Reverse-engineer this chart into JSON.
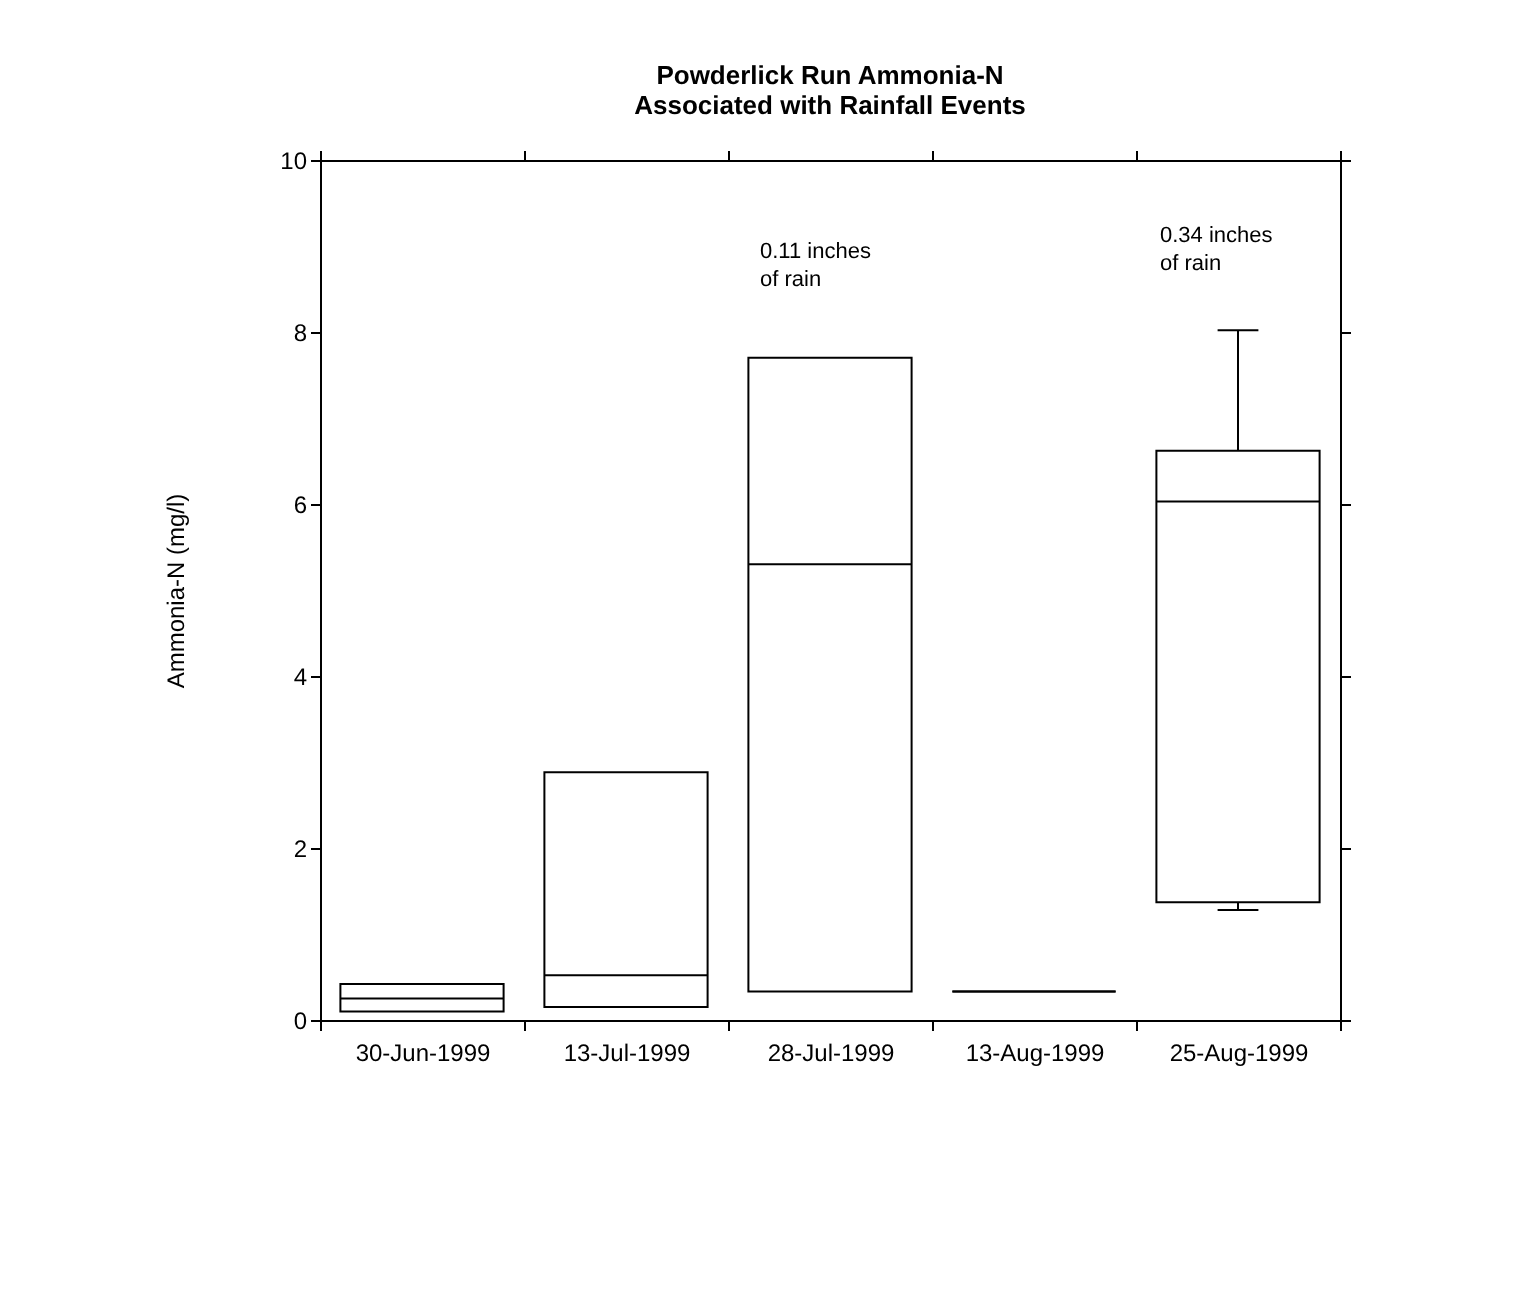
{
  "chart_data": {
    "type": "box",
    "title": [
      "Powderlick Run Ammonia-N",
      "Associated with Rainfall Events"
    ],
    "ylabel": "Ammonia-N (mg/l)",
    "categories": [
      "30-Jun-1999",
      "13-Jul-1999",
      "28-Jul-1999",
      "13-Aug-1999",
      "25-Aug-1999"
    ],
    "boxes": [
      {
        "low": 0.1,
        "q1": 0.1,
        "median": 0.25,
        "q3": 0.42,
        "high": 0.42
      },
      {
        "low": 0.15,
        "q1": 0.15,
        "median": 0.52,
        "q3": 2.88,
        "high": 2.88
      },
      {
        "low": 0.33,
        "q1": 0.33,
        "median": 5.3,
        "q3": 7.7,
        "high": 7.7
      },
      {
        "low": 0.33,
        "q1": 0.33,
        "median": 0.33,
        "q3": 0.33,
        "high": 0.33
      },
      {
        "low": 1.28,
        "q1": 1.37,
        "median": 6.03,
        "q3": 6.62,
        "high": 8.02
      }
    ],
    "ylim": [
      0,
      10
    ],
    "yticks": [
      0,
      2,
      4,
      6,
      8,
      10
    ],
    "grid": false,
    "annotations": [
      "0.11 inches\nof rain",
      "0.34 inches\nof rain"
    ]
  }
}
